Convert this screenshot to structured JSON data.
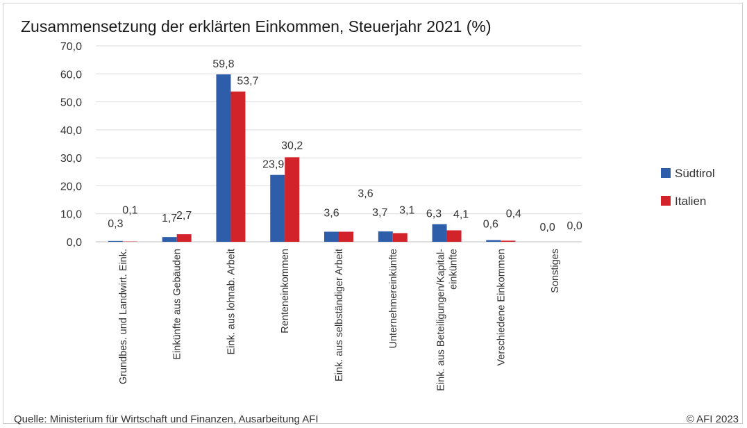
{
  "chart_data": {
    "type": "bar",
    "title": "Zusammensetzung der erklärten Einkommen, Steuerjahr 2021 (%)",
    "categories": [
      [
        "Grundbes. und Landwirt. Eink."
      ],
      [
        "Einkünfte aus Gebäuden"
      ],
      [
        "Eink. aus lohnab. Arbeit"
      ],
      [
        "Renteneinkommen"
      ],
      [
        "Eink. aus selbständiger Arbeit"
      ],
      [
        "Unternehmereinkünfte"
      ],
      [
        "Eink. aus Beteiligungen/Kapital-",
        "einkünfte"
      ],
      [
        "Verschiedene Einkommen"
      ],
      [
        "Sonstiges"
      ]
    ],
    "series": [
      {
        "name": "Südtirol",
        "color": "#2e5eaa",
        "values": [
          0.3,
          1.7,
          59.8,
          23.9,
          3.6,
          3.7,
          6.3,
          0.6,
          0.0
        ],
        "labels": [
          "0,3",
          "1,7",
          "59,8",
          "23,9",
          "3,6",
          "3,7",
          "6,3",
          "0,6",
          "0,0"
        ]
      },
      {
        "name": "Italien",
        "color": "#d2232a",
        "values": [
          0.1,
          2.7,
          53.7,
          30.2,
          3.6,
          3.1,
          4.1,
          0.4,
          0.0
        ],
        "labels": [
          "0,1",
          "2,7",
          "53,7",
          "30,2",
          "3,6",
          "3,1",
          "4,1",
          "0,4",
          "0,0"
        ]
      }
    ],
    "yticks": [
      "0,0",
      "10,0",
      "20,0",
      "30,0",
      "40,0",
      "50,0",
      "60,0",
      "70,0"
    ],
    "ylim": [
      0,
      70
    ],
    "grid": true,
    "legend": "right"
  },
  "footer": {
    "source": "Quelle: Ministerium für Wirtschaft und Finanzen, Ausarbeitung AFI",
    "copyright": "© AFI 2023"
  }
}
